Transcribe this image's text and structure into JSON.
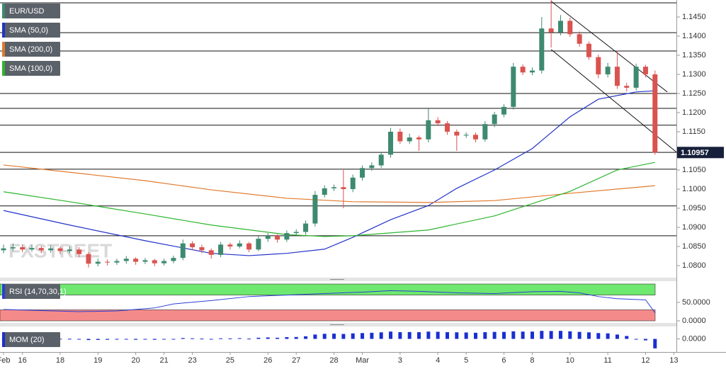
{
  "chart_data": [
    {
      "type": "candlestick",
      "title": "EUR/USD",
      "watermark": "FXSTREET",
      "up_color": "#3d8a70",
      "down_color": "#d9534f",
      "x": [
        "Feb",
        null,
        "16",
        null,
        null,
        null,
        "18",
        null,
        null,
        null,
        "19",
        null,
        null,
        null,
        "20",
        null,
        null,
        "21",
        null,
        null,
        "23",
        null,
        null,
        null,
        "25",
        null,
        null,
        null,
        "26",
        null,
        null,
        "27",
        null,
        null,
        null,
        "28",
        null,
        null,
        "Mar",
        null,
        null,
        null,
        "3",
        null,
        null,
        null,
        "4",
        null,
        null,
        "5",
        null,
        null,
        null,
        "6",
        null,
        null,
        "8",
        null,
        null,
        null,
        "10",
        null,
        null,
        null,
        "11",
        null,
        null,
        null,
        "12",
        null,
        null,
        "13"
      ],
      "open": [
        1.084,
        1.0845,
        1.0848,
        1.0842,
        1.0846,
        1.084,
        1.0845,
        1.0838,
        1.0842,
        1.083,
        1.0805,
        1.081,
        1.0808,
        1.0812,
        1.0818,
        1.081,
        1.0814,
        1.0806,
        1.0812,
        1.082,
        1.0858,
        1.0848,
        1.084,
        1.0828,
        1.0855,
        1.085,
        1.0858,
        1.0842,
        1.087,
        1.0878,
        1.0868,
        1.0885,
        1.0888,
        1.091,
        1.0985,
        1.1002,
        1.1005,
        1.1,
        1.103,
        1.1055,
        1.1062,
        1.109,
        1.115,
        1.1125,
        1.1135,
        1.113,
        1.118,
        1.1172,
        1.115,
        1.114,
        1.1142,
        1.113,
        1.117,
        1.1195,
        1.1215,
        1.132,
        1.1305,
        1.131,
        1.142,
        1.141,
        1.144,
        1.1405,
        1.138,
        1.1345,
        1.13,
        1.132,
        1.127,
        1.1265,
        1.132,
        1.13,
        null,
        null
      ],
      "high": [
        1.0855,
        1.0858,
        1.0855,
        1.0854,
        1.0852,
        1.0853,
        1.085,
        1.085,
        1.0848,
        1.0835,
        1.0818,
        1.0816,
        1.0818,
        1.0825,
        1.0822,
        1.082,
        1.0818,
        1.0818,
        1.0826,
        1.0868,
        1.0864,
        1.0855,
        1.0845,
        1.0862,
        1.086,
        1.0866,
        1.0862,
        1.0878,
        1.0885,
        1.0882,
        1.0892,
        1.0895,
        1.0918,
        1.0995,
        1.101,
        1.1012,
        1.105,
        1.1038,
        1.1062,
        1.107,
        1.1098,
        1.116,
        1.1158,
        1.1145,
        1.114,
        1.121,
        1.1188,
        1.1178,
        1.1156,
        1.1148,
        1.1148,
        1.1178,
        1.1202,
        1.1222,
        1.133,
        1.1326,
        1.1318,
        1.145,
        1.1495,
        1.1455,
        1.1448,
        1.1412,
        1.1386,
        1.1352,
        1.133,
        1.1362,
        1.1278,
        1.1328,
        1.1325,
        1.131,
        null,
        null
      ],
      "low": [
        1.0832,
        1.0838,
        1.0835,
        1.0836,
        1.0832,
        1.0834,
        1.083,
        1.0832,
        1.0822,
        1.0795,
        1.0798,
        1.08,
        1.0802,
        1.0805,
        1.0802,
        1.0804,
        1.0798,
        1.08,
        1.0806,
        1.0814,
        1.084,
        1.0832,
        1.0818,
        1.0822,
        1.0842,
        1.0845,
        1.0835,
        1.0838,
        1.0862,
        1.086,
        1.0862,
        1.0878,
        1.088,
        1.0902,
        1.0978,
        1.0995,
        1.095,
        1.0992,
        1.1022,
        1.1048,
        1.1055,
        1.1082,
        1.1118,
        1.1118,
        1.11,
        1.1122,
        1.1165,
        1.1142,
        1.11,
        1.1134,
        1.1122,
        1.1124,
        1.1162,
        1.1188,
        1.1208,
        1.1298,
        1.1298,
        1.1302,
        1.137,
        1.1402,
        1.1398,
        1.1372,
        1.1338,
        1.129,
        1.1292,
        1.1262,
        1.1255,
        1.1258,
        1.1292,
        1.109,
        null,
        null
      ],
      "close": [
        1.0845,
        1.0848,
        1.0842,
        1.0846,
        1.084,
        1.0845,
        1.0838,
        1.0842,
        1.083,
        1.0805,
        1.081,
        1.0808,
        1.0812,
        1.0818,
        1.081,
        1.0814,
        1.0806,
        1.0812,
        1.082,
        1.0858,
        1.0848,
        1.084,
        1.0828,
        1.0855,
        1.085,
        1.0858,
        1.0842,
        1.087,
        1.0878,
        1.0868,
        1.0885,
        1.0888,
        1.091,
        1.0985,
        1.1002,
        1.1005,
        1.1,
        1.103,
        1.1055,
        1.1062,
        1.109,
        1.115,
        1.1125,
        1.1135,
        1.113,
        1.118,
        1.1172,
        1.115,
        1.114,
        1.1142,
        1.113,
        1.117,
        1.1195,
        1.1215,
        1.132,
        1.1305,
        1.131,
        1.142,
        1.141,
        1.144,
        1.1405,
        1.138,
        1.1345,
        1.13,
        1.132,
        1.127,
        1.1265,
        1.132,
        1.13,
        1.10957,
        null,
        null
      ],
      "series": [
        {
          "name": "SMA (50,0)",
          "color": "#2333c8",
          "x": [
            0,
            7,
            15,
            22,
            26,
            30,
            34,
            37,
            41,
            45,
            48,
            52,
            56,
            60,
            63,
            67,
            69
          ],
          "values": [
            1.0944,
            1.0906,
            1.0865,
            1.0832,
            1.0826,
            1.0832,
            1.0843,
            1.0874,
            1.092,
            1.0957,
            1.1002,
            1.105,
            1.1106,
            1.1189,
            1.1235,
            1.1254,
            1.1257
          ]
        },
        {
          "name": "SMA (200,0)",
          "color": "#e07a2e",
          "x": [
            0,
            7,
            15,
            22,
            30,
            37,
            45,
            52,
            60,
            69
          ],
          "values": [
            1.1063,
            1.1044,
            1.1022,
            1.0998,
            1.0976,
            1.0967,
            1.0965,
            1.097,
            1.0989,
            1.1009
          ]
        },
        {
          "name": "SMA (100,0)",
          "color": "#2db52d",
          "x": [
            0,
            7,
            15,
            22,
            30,
            34,
            37,
            45,
            52,
            60,
            65,
            69
          ],
          "values": [
            1.0993,
            1.0967,
            1.0935,
            1.0906,
            1.0881,
            1.0876,
            1.0878,
            1.0893,
            1.093,
            1.0994,
            1.105,
            1.107
          ]
        }
      ],
      "levels": [
        1.1487,
        1.1409,
        1.1361,
        1.125,
        1.1211,
        1.1167,
        1.1096,
        1.1052,
        1.0956,
        1.0878
      ],
      "trendlines": [
        {
          "x": [
            58,
            70.3
          ],
          "values": [
            1.1491,
            1.1254
          ]
        },
        {
          "x": [
            58,
            71.3
          ],
          "values": [
            1.1365,
            1.1096
          ]
        }
      ],
      "last_price": 1.10957,
      "ylim": [
        1.07685,
        1.14944
      ],
      "yticks": [
        {
          "value": 1.08,
          "label": "1.0800"
        },
        {
          "value": 1.085,
          "label": "1.0850"
        },
        {
          "value": 1.09,
          "label": "1.0900"
        },
        {
          "value": 1.095,
          "label": "1.0950"
        },
        {
          "value": 1.1,
          "label": "1.1000"
        },
        {
          "value": 1.105,
          "label": "1.1050"
        },
        {
          "value": 1.11,
          "label": "1.1100"
        },
        {
          "value": 1.115,
          "label": "1.1150"
        },
        {
          "value": 1.12,
          "label": "1.1200"
        },
        {
          "value": 1.125,
          "label": "1.1250"
        },
        {
          "value": 1.13,
          "label": "1.1300"
        },
        {
          "value": 1.135,
          "label": "1.1350"
        },
        {
          "value": 1.14,
          "label": "1.1400"
        },
        {
          "value": 1.145,
          "label": "1.1450"
        }
      ]
    },
    {
      "type": "line",
      "title": "RSI (14,70,30,1)",
      "color": "#2a3fd6",
      "x": [
        0,
        4,
        8,
        12,
        16,
        18,
        22,
        26,
        30,
        34,
        38,
        41,
        44,
        48,
        52,
        56,
        59,
        61,
        63,
        65,
        67,
        68,
        69
      ],
      "values": [
        31,
        28,
        25,
        27,
        35,
        46,
        55,
        66,
        70,
        74,
        78,
        82,
        80,
        76,
        74,
        79,
        80,
        76,
        66,
        60,
        58,
        57,
        22
      ],
      "bands": [
        {
          "from": 70,
          "to": 100,
          "color": "#6ee86e"
        },
        {
          "from": 0,
          "to": 30,
          "color": "#f58a8a"
        }
      ],
      "ylim": [
        -3.85,
        105.8
      ],
      "yticks": [
        {
          "value": 50,
          "label": "50.0000"
        },
        {
          "value": 0,
          "label": "0.0000"
        }
      ]
    },
    {
      "type": "bar",
      "title": "MOM (20)",
      "color": "#1a2fd0",
      "values": [
        0.0002,
        0.0003,
        0.0001,
        0.0002,
        0.0001,
        0.0002,
        0.0001,
        0.0001,
        -0.0002,
        -0.0008,
        -0.0007,
        -0.0006,
        -0.0005,
        -0.0004,
        -0.0006,
        -0.0005,
        -0.0006,
        -0.0004,
        -0.0003,
        0.0006,
        0.0004,
        0.0002,
        -0.0003,
        0.0004,
        0.0003,
        0.0005,
        0.0002,
        0.0008,
        0.001,
        0.0008,
        0.0012,
        0.0013,
        0.0018,
        0.003,
        0.0035,
        0.0036,
        0.0034,
        0.0038,
        0.004,
        0.0042,
        0.0045,
        0.005,
        0.0046,
        0.0047,
        0.0046,
        0.005,
        0.0049,
        0.0046,
        0.0045,
        0.0044,
        0.0042,
        0.0046,
        0.0048,
        0.0048,
        0.0052,
        0.005,
        0.005,
        0.0055,
        0.0054,
        0.0055,
        0.0052,
        0.0048,
        0.0045,
        0.004,
        0.0038,
        0.003,
        0.002,
        -0.0005,
        -0.001,
        -0.0065,
        null,
        null
      ],
      "ylim": [
        -0.0085,
        0.0085
      ],
      "yticks": [
        {
          "value": 0,
          "label": "0.0000"
        }
      ]
    }
  ]
}
